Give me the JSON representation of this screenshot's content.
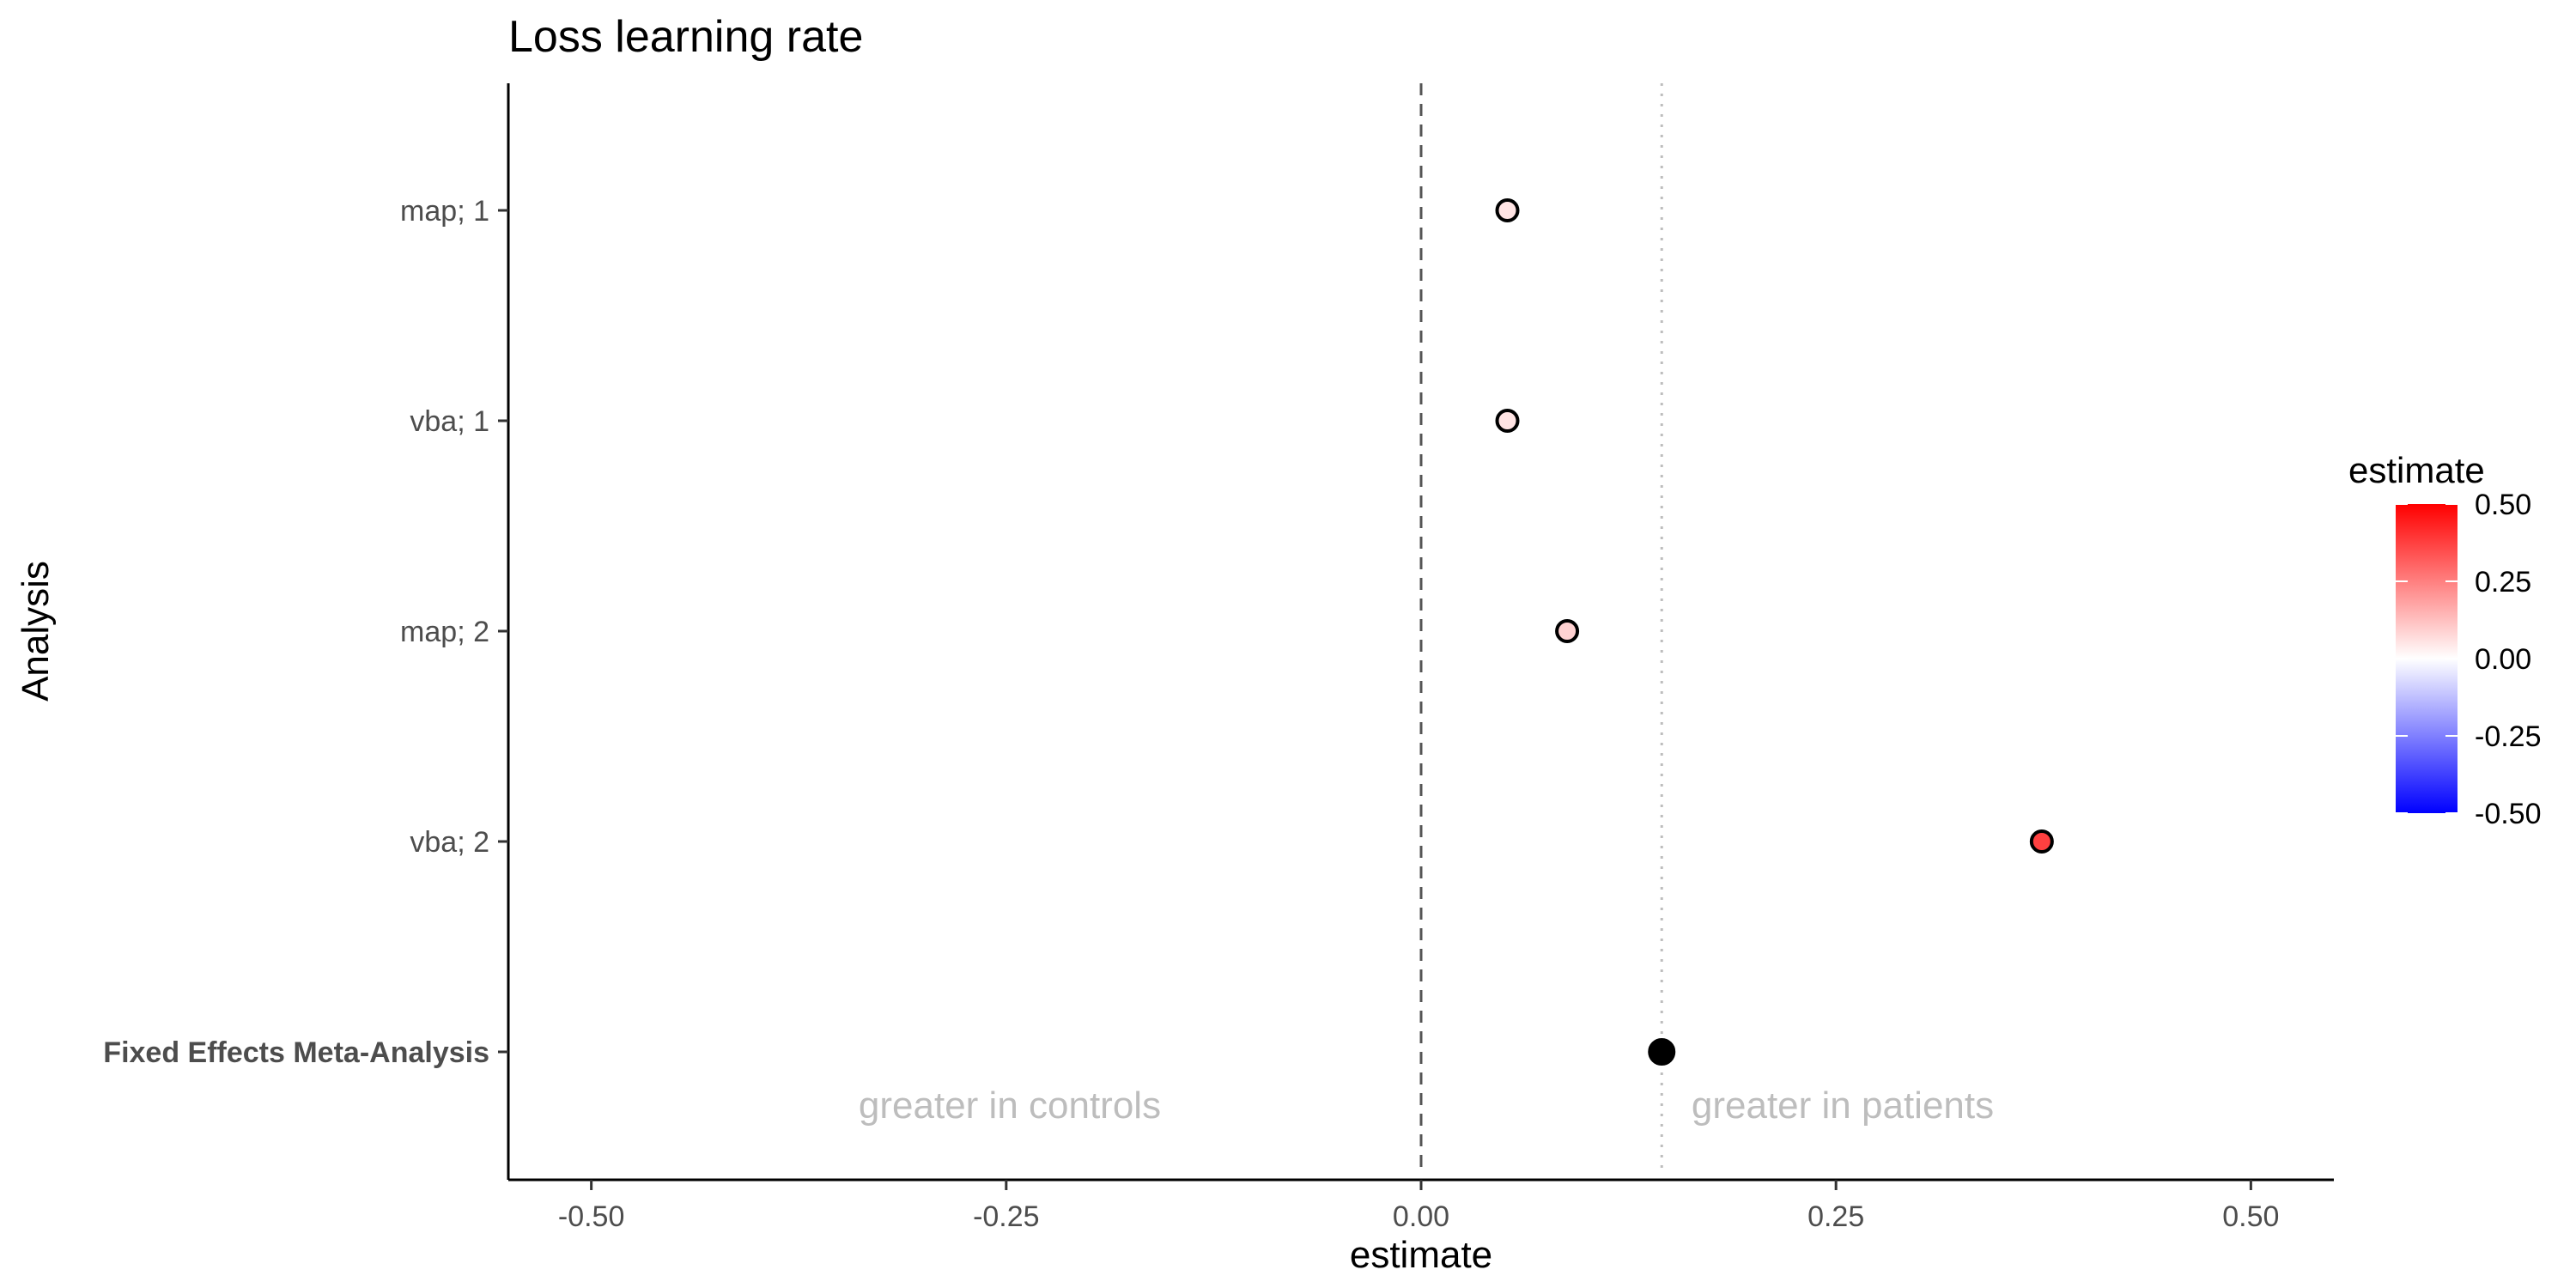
{
  "chart_data": {
    "type": "scatter",
    "title": "Loss learning rate",
    "xlabel": "estimate",
    "ylabel": "Analysis",
    "xlim": [
      -0.55,
      0.55
    ],
    "x_ticks": [
      -0.5,
      -0.25,
      0.0,
      0.25,
      0.5
    ],
    "x_tick_labels": [
      "-0.50",
      "-0.25",
      "0.00",
      "0.25",
      "0.50"
    ],
    "categories": [
      "map; 1",
      "vba; 1",
      "map; 2",
      "vba; 2",
      "Fixed Effects Meta-Analysis"
    ],
    "points": [
      {
        "label": "map; 1",
        "estimate": 0.052
      },
      {
        "label": "vba; 1",
        "estimate": 0.052
      },
      {
        "label": "map; 2",
        "estimate": 0.088
      },
      {
        "label": "vba; 2",
        "estimate": 0.374
      },
      {
        "label": "Fixed Effects Meta-Analysis",
        "estimate": 0.145,
        "summary": true
      }
    ],
    "reference_lines": [
      {
        "x": 0.0,
        "style": "dashed",
        "color": "#555555"
      },
      {
        "x": 0.145,
        "style": "dotted",
        "color": "#bdbdbd"
      }
    ],
    "annotations": [
      {
        "text": "greater in controls",
        "x": -0.25
      },
      {
        "text": "greater in patients",
        "x": 0.25
      }
    ],
    "legend": {
      "title": "estimate",
      "position": "right",
      "range": [
        -0.5,
        0.5
      ],
      "ticks": [
        0.5,
        0.25,
        0.0,
        -0.25,
        -0.5
      ],
      "tick_labels": [
        "0.50",
        "0.25",
        "0.00",
        "-0.25",
        "-0.50"
      ],
      "low_color": "#0000ff",
      "mid_color": "#ffffff",
      "high_color": "#ff0000"
    },
    "grid": false
  }
}
